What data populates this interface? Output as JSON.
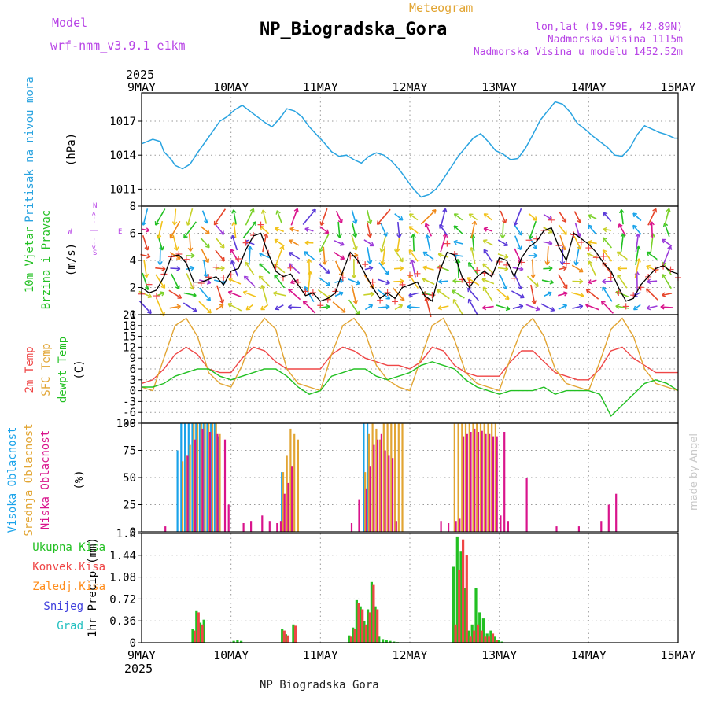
{
  "header": {
    "model_label": "Model",
    "model_name": "wrf-nmm_v3.9.1 e1km",
    "chart_kind": "Meteogram",
    "station": "NP_Biogradska_Gora",
    "lonlat": "lon,lat (19.59E, 42.89N)",
    "altitude": "Nadmorska Visina 1115m",
    "model_altitude": "Nadmorska Visina u modelu 1452.52m",
    "footer_station": "NP_Biogradska_Gora",
    "credit": "made by Angel"
  },
  "colors": {
    "pressure": "#29a3e0",
    "wind_text": "#22c022",
    "wind_dir": "#b845e6",
    "t2m": "#ef4646",
    "tsfc": "#e2a533",
    "dewpt": "#22c022",
    "cloud_high": "#1aa3ea",
    "cloud_mid": "#e2a533",
    "cloud_low": "#d9148c",
    "precip_total": "#22c022",
    "precip_conv": "#ef4646",
    "precip_frz": "#ff8c1a",
    "precip_snow": "#4040dd",
    "precip_grad": "#22c0c0",
    "model_label": "#b845e6",
    "chart_kind": "#e2a533",
    "credit": "#c8c8c8"
  },
  "chart_data": {
    "type": "meteogram",
    "x_axis": {
      "year": "2025",
      "ticks": [
        "9MAY",
        "10MAY",
        "11MAY",
        "12MAY",
        "13MAY",
        "14MAY",
        "15MAY"
      ],
      "range_hours": [
        0,
        144
      ]
    },
    "panels": [
      {
        "id": "pressure",
        "type": "line",
        "ylabel": "Pritisak na nivou mora",
        "unit": "(hPa)",
        "yticks": [
          1011,
          1014,
          1017
        ],
        "ylim": [
          1009.5,
          1019.5
        ],
        "series": [
          {
            "color_key": "pressure",
            "x": [
              0,
              3,
              5,
              6,
              8,
              9,
              11,
              13,
              15,
              18,
              21,
              23,
              25,
              27,
              29,
              31,
              33,
              35,
              37,
              39,
              41,
              43,
              45,
              47,
              49,
              51,
              53,
              55,
              57,
              59,
              61,
              63,
              65,
              67,
              69,
              71,
              73,
              75,
              77,
              79,
              81,
              83,
              85,
              87,
              89,
              91,
              93,
              95,
              97,
              99,
              101,
              103,
              105,
              107,
              109,
              111,
              113,
              115,
              117,
              119,
              121,
              123,
              125,
              127,
              129,
              131,
              133,
              135,
              137,
              139,
              141,
              143,
              144
            ],
            "y": [
              1015.0,
              1015.4,
              1015.2,
              1014.3,
              1013.6,
              1013.1,
              1012.8,
              1013.2,
              1014.2,
              1015.6,
              1017.0,
              1017.4,
              1018.0,
              1018.4,
              1017.9,
              1017.4,
              1016.9,
              1016.5,
              1017.2,
              1018.1,
              1017.9,
              1017.4,
              1016.5,
              1015.8,
              1015.1,
              1014.3,
              1013.9,
              1014.0,
              1013.6,
              1013.3,
              1013.9,
              1014.2,
              1014.0,
              1013.5,
              1012.8,
              1011.9,
              1011.0,
              1010.3,
              1010.5,
              1011.0,
              1011.9,
              1012.9,
              1013.9,
              1014.7,
              1015.5,
              1015.9,
              1015.2,
              1014.4,
              1014.1,
              1013.6,
              1013.7,
              1014.6,
              1015.8,
              1017.1,
              1017.9,
              1018.7,
              1018.5,
              1017.8,
              1016.8,
              1016.3,
              1015.7,
              1015.2,
              1014.7,
              1014.0,
              1013.9,
              1014.6,
              1015.8,
              1016.6,
              1016.3,
              1016.0,
              1015.8,
              1015.5,
              1015.5
            ]
          }
        ]
      },
      {
        "id": "wind",
        "type": "line+vectors",
        "ylabel": "10m Vjetar",
        "ylabel2": "Brzina i Pravac",
        "unit": "(m/s)",
        "yticks": [
          0,
          2,
          4,
          6,
          8
        ],
        "ylim": [
          0,
          8
        ],
        "compass": {
          "w": "W",
          "e": "E",
          "n": "N",
          "s": "S",
          "arrow": "<-- | -->"
        },
        "series": [
          {
            "color": "#000000",
            "x": [
              0,
              2,
              4,
              6,
              8,
              10,
              12,
              14,
              16,
              18,
              20,
              22,
              24,
              26,
              28,
              30,
              32,
              34,
              36,
              38,
              40,
              42,
              44,
              46,
              48,
              50,
              52,
              54,
              56,
              58,
              60,
              62,
              64,
              66,
              68,
              70,
              72,
              74,
              76,
              78,
              80,
              82,
              84,
              86,
              88,
              90,
              92,
              94,
              96,
              98,
              100,
              102,
              104,
              106,
              108,
              110,
              112,
              114,
              116,
              118,
              120,
              122,
              124,
              126,
              128,
              130,
              132,
              134,
              136,
              138,
              140,
              142,
              144
            ],
            "y": [
              2.0,
              1.6,
              1.8,
              2.8,
              4.3,
              4.4,
              3.8,
              2.4,
              2.4,
              2.6,
              2.8,
              2.2,
              3.2,
              3.4,
              4.8,
              5.8,
              6.0,
              4.5,
              3.2,
              2.8,
              3.0,
              2.2,
              1.4,
              1.6,
              1.0,
              1.2,
              1.6,
              3.2,
              4.6,
              4.0,
              3.0,
              2.0,
              1.2,
              1.6,
              1.2,
              2.0,
              2.2,
              2.4,
              1.4,
              1.0,
              3.2,
              4.6,
              4.4,
              2.8,
              2.0,
              2.8,
              3.2,
              2.8,
              4.2,
              4.0,
              2.8,
              4.2,
              5.0,
              5.4,
              6.2,
              6.4,
              5.0,
              4.0,
              6.0,
              5.6,
              5.2,
              4.6,
              3.8,
              3.2,
              2.0,
              1.0,
              1.2,
              2.2,
              2.8,
              3.4,
              3.6,
              3.2,
              3.0
            ]
          }
        ]
      },
      {
        "id": "temperature",
        "type": "line",
        "ylabel": "2m Temp",
        "ylabel2": "SFC Temp",
        "ylabel3": "dewpt Temp",
        "unit": "(C)",
        "yticks": [
          -9,
          -6,
          -3,
          0,
          3,
          6,
          9,
          12,
          15,
          18,
          21
        ],
        "ylim": [
          -9,
          21
        ],
        "x": [
          0,
          3,
          6,
          9,
          12,
          15,
          18,
          21,
          24,
          27,
          30,
          33,
          36,
          39,
          42,
          45,
          48,
          51,
          54,
          57,
          60,
          63,
          66,
          69,
          72,
          75,
          78,
          81,
          84,
          87,
          90,
          93,
          96,
          99,
          102,
          105,
          108,
          111,
          114,
          117,
          120,
          123,
          126,
          129,
          132,
          135,
          138,
          141,
          144
        ],
        "series": [
          {
            "name": "2m Temp",
            "color_key": "t2m",
            "y": [
              2,
              3,
              6,
              10,
              12,
              10,
              6,
              5,
              5,
              9,
              12,
              11,
              8,
              6,
              6,
              6,
              6,
              10,
              12,
              11,
              9,
              8,
              7,
              7,
              6,
              8,
              12,
              11,
              7,
              5,
              4,
              4,
              4,
              8,
              11,
              11,
              8,
              5,
              4,
              3,
              3,
              6,
              11,
              12,
              9,
              7,
              5,
              5,
              5
            ]
          },
          {
            "name": "SFC Temp",
            "color_key": "tsfc",
            "y": [
              1,
              0,
              9,
              18,
              20,
              15,
              5,
              2,
              1,
              7,
              16,
              20,
              17,
              6,
              2,
              1,
              0,
              10,
              18,
              20,
              16,
              7,
              3,
              1,
              0,
              9,
              18,
              20,
              14,
              5,
              2,
              1,
              0,
              9,
              17,
              20,
              15,
              6,
              2,
              1,
              0,
              8,
              17,
              20,
              15,
              6,
              2,
              1,
              0
            ]
          },
          {
            "name": "dewpt Temp",
            "color_key": "dewpt",
            "y": [
              1,
              1,
              2,
              4,
              5,
              6,
              6,
              4,
              3,
              4,
              5,
              6,
              6,
              4,
              1,
              -1,
              0,
              4,
              5,
              6,
              6,
              4,
              3,
              4,
              5,
              7,
              8,
              7,
              6,
              3,
              1,
              0,
              -1,
              0,
              0,
              0,
              1,
              -1,
              0,
              0,
              0,
              -1,
              -7,
              -4,
              -1,
              2,
              3,
              2,
              0
            ]
          }
        ]
      },
      {
        "id": "clouds",
        "type": "bar",
        "ylabel": "Visoka Oblacnost",
        "ylabel2": "Srednja Oblacnost",
        "ylabel3": "Niska Oblacnost",
        "unit": "(%)",
        "yticks": [
          0,
          25,
          50,
          75,
          100
        ],
        "ylim": [
          0,
          100
        ],
        "series": [
          {
            "name": "Visoka Oblacnost",
            "color_key": "cloud_high",
            "x": [
              10,
              11,
              12,
              13,
              14,
              15,
              16,
              17,
              18,
              19,
              20,
              21,
              38,
              60,
              61
            ],
            "y": [
              75,
              100,
              100,
              100,
              100,
              100,
              100,
              100,
              100,
              100,
              100,
              88,
              55,
              100,
              100
            ]
          },
          {
            "name": "Srednja Oblacnost",
            "color_key": "cloud_mid",
            "x": [
              11,
              12,
              13,
              14,
              15,
              16,
              17,
              18,
              19,
              20,
              21,
              38,
              39,
              40,
              41,
              42,
              60,
              61,
              62,
              63,
              64,
              65,
              66,
              67,
              68,
              69,
              70,
              84,
              85,
              86,
              87,
              88,
              89,
              90,
              91,
              92,
              93,
              94,
              95
            ],
            "y": [
              65,
              70,
              80,
              100,
              100,
              100,
              100,
              100,
              100,
              100,
              90,
              55,
              70,
              95,
              90,
              85,
              55,
              90,
              100,
              95,
              85,
              100,
              100,
              100,
              100,
              100,
              100,
              100,
              100,
              100,
              100,
              100,
              100,
              100,
              100,
              100,
              100,
              100,
              100
            ]
          },
          {
            "name": "Niska Oblacnost",
            "color_key": "cloud_low",
            "x": [
              6,
              12,
              14,
              16,
              18,
              20,
              22,
              23,
              27,
              29,
              32,
              34,
              36,
              37,
              38,
              39,
              40,
              56,
              58,
              60,
              61,
              62,
              63,
              64,
              65,
              66,
              67,
              68,
              80,
              82,
              84,
              85,
              86,
              87,
              88,
              89,
              90,
              91,
              92,
              93,
              94,
              95,
              96,
              97,
              98,
              103,
              111,
              117,
              123,
              125,
              127
            ],
            "y": [
              5,
              70,
              85,
              95,
              92,
              90,
              85,
              25,
              8,
              10,
              15,
              10,
              8,
              10,
              35,
              45,
              60,
              8,
              30,
              40,
              60,
              80,
              85,
              90,
              75,
              70,
              68,
              10,
              10,
              8,
              10,
              12,
              88,
              90,
              92,
              95,
              92,
              93,
              90,
              90,
              88,
              88,
              15,
              92,
              10,
              50,
              5,
              5,
              10,
              25,
              35
            ]
          }
        ]
      },
      {
        "id": "precip",
        "type": "bar",
        "ylabel": "1hr Precip",
        "unit": "(mm)",
        "legend": [
          "Ukupna Kisa",
          "Konvek.Kisa",
          "Zaledj.Kisa",
          "Snijeg",
          "Grad"
        ],
        "yticks": [
          0,
          0.36,
          0.72,
          1.08,
          1.44,
          1.8
        ],
        "ylim": [
          0,
          1.8
        ],
        "series": [
          {
            "name": "Ukupna Kisa",
            "color_key": "precip_total",
            "x": [
              14,
              15,
              16,
              17,
              25,
              26,
              27,
              38,
              39,
              41,
              56,
              57,
              58,
              59,
              60,
              61,
              62,
              63,
              64,
              65,
              66,
              67,
              68,
              69,
              84,
              85,
              86,
              87,
              88,
              89,
              90,
              91,
              92,
              93,
              94,
              95,
              96,
              97
            ],
            "y": [
              0.22,
              0.52,
              0.33,
              0.38,
              0.03,
              0.04,
              0.03,
              0.22,
              0.14,
              0.3,
              0.12,
              0.25,
              0.7,
              0.6,
              0.35,
              0.55,
              1.0,
              0.6,
              0.1,
              0.06,
              0.04,
              0.03,
              0.02,
              0.01,
              1.25,
              1.75,
              1.5,
              0.9,
              0.2,
              0.3,
              0.9,
              0.5,
              0.4,
              0.15,
              0.2,
              0.1,
              0.04,
              0.02
            ]
          },
          {
            "name": "Konvek.Kisa",
            "color_key": "precip_conv",
            "x": [
              14,
              15,
              16,
              38,
              39,
              41,
              56,
              57,
              58,
              59,
              60,
              61,
              62,
              63,
              84,
              85,
              86,
              87,
              88,
              89,
              90,
              91,
              92,
              93,
              94,
              95
            ],
            "y": [
              0.2,
              0.5,
              0.3,
              0.2,
              0.12,
              0.28,
              0.1,
              0.22,
              0.65,
              0.55,
              0.3,
              0.5,
              0.95,
              0.55,
              0.3,
              1.2,
              1.7,
              1.45,
              0.1,
              0.2,
              0.3,
              0.2,
              0.1,
              0.1,
              0.15,
              0.05
            ]
          }
        ]
      }
    ]
  }
}
